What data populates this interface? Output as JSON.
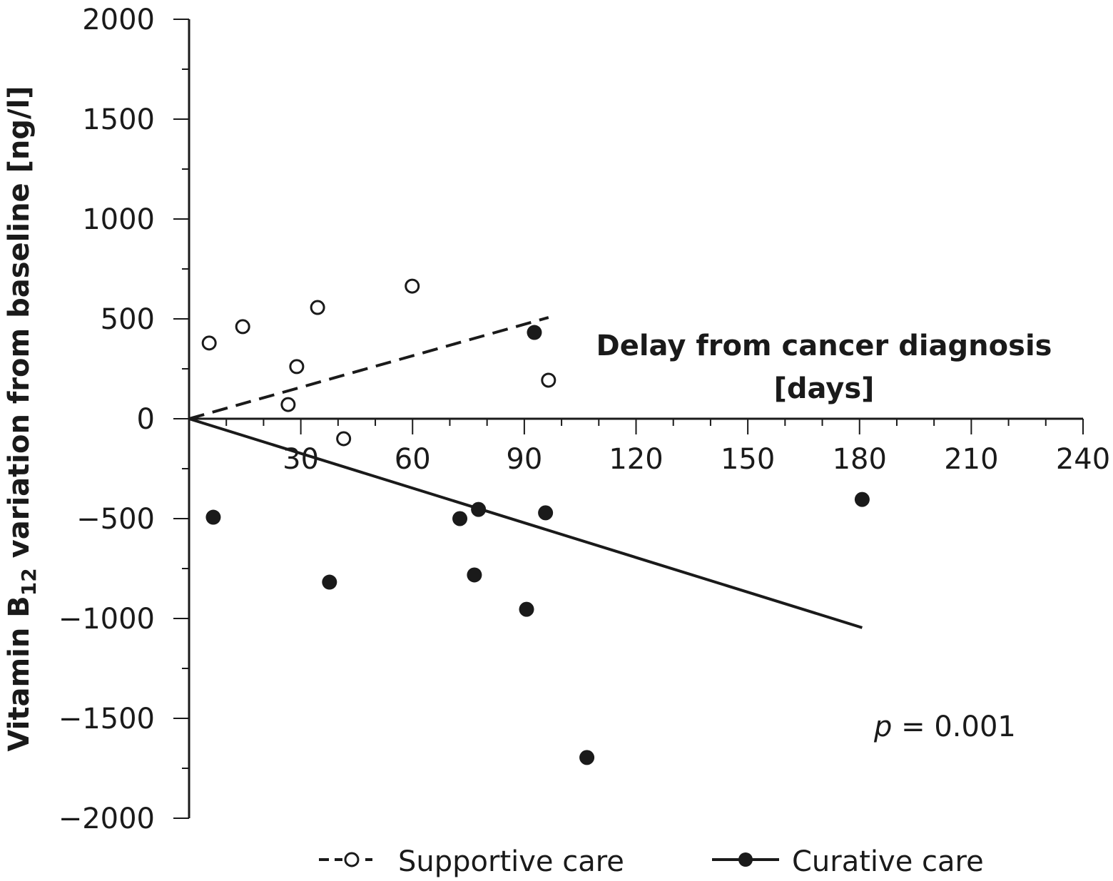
{
  "chart_data": {
    "type": "scatter",
    "title": "",
    "xlabel_line1": "Delay from cancer diagnosis",
    "xlabel_line2": "[days]",
    "ylabel_main": "Vitamin B",
    "ylabel_sub": "12",
    "ylabel_rest": " variation from baseline [ng/l]",
    "xlim": [
      0,
      240
    ],
    "ylim": [
      -2000,
      2000
    ],
    "x_ticks": [
      30,
      60,
      90,
      120,
      150,
      180,
      210,
      240
    ],
    "x_tick_labels": [
      "30",
      "60",
      "90",
      "120",
      "150",
      "180",
      "210",
      "240"
    ],
    "y_ticks": [
      2000,
      1500,
      1000,
      500,
      0,
      -500,
      -1000,
      -1500,
      -2000
    ],
    "y_tick_labels": [
      "2000",
      "1500",
      "1000",
      "500",
      "0",
      "−500",
      "−1000",
      "−1500",
      "−2000"
    ],
    "grid": false,
    "legend_position": "bottom",
    "annotation_p_symbol": "p",
    "annotation_p_value": " = 0.001",
    "series": [
      {
        "name": "Supportive care",
        "marker": "open-circle",
        "line_style": "dashed",
        "points": [
          [
            5.4,
            379
          ],
          [
            14.4,
            461
          ],
          [
            26.6,
            71
          ],
          [
            28.9,
            261
          ],
          [
            34.5,
            557
          ],
          [
            41.5,
            -100
          ],
          [
            59.9,
            664
          ],
          [
            96.5,
            193
          ]
        ],
        "fit_line": [
          [
            0,
            0
          ],
          [
            96.5,
            507
          ]
        ]
      },
      {
        "name": "Curative care",
        "marker": "filled-circle",
        "line_style": "solid",
        "points": [
          [
            6.5,
            -493
          ],
          [
            37.7,
            -818
          ],
          [
            72.7,
            -500
          ],
          [
            76.6,
            -782
          ],
          [
            77.7,
            -454
          ],
          [
            90.6,
            -954
          ],
          [
            92.7,
            432
          ],
          [
            95.7,
            -471
          ],
          [
            106.8,
            -1696
          ],
          [
            180.7,
            -404
          ]
        ],
        "fit_line": [
          [
            0,
            0
          ],
          [
            180.7,
            -1046
          ]
        ]
      }
    ],
    "colors": {
      "ink": "#1a1a1a",
      "background": "#ffffff"
    }
  }
}
